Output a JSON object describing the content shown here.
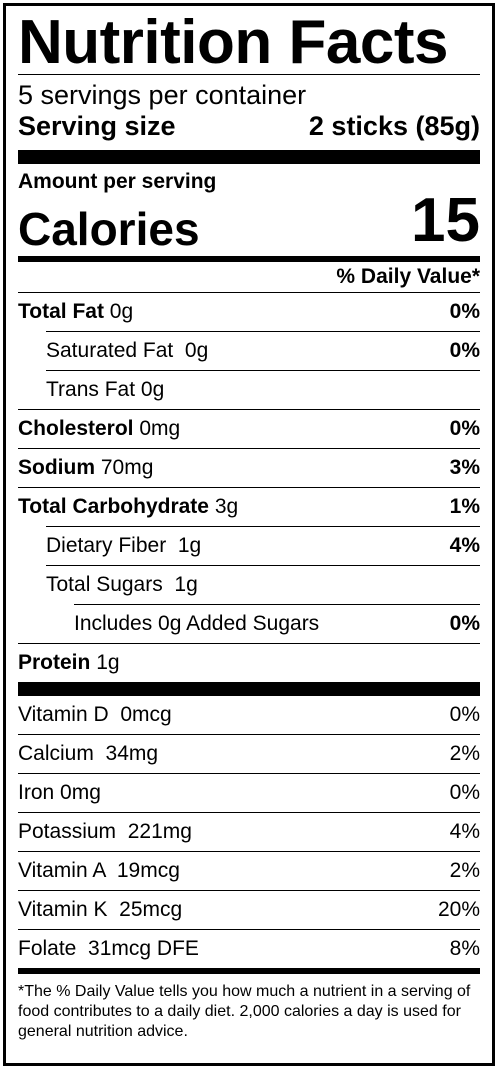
{
  "title": "Nutrition Facts",
  "servings_per_container": "5 servings per container",
  "serving_size": {
    "label": "Serving size",
    "value": "2 sticks (85g)"
  },
  "amount_per_serving": "Amount per serving",
  "calories": {
    "label": "Calories",
    "value": "15"
  },
  "daily_value_header": "% Daily Value*",
  "nutrients": [
    {
      "name": "Total Fat",
      "amount": "0g",
      "dv": "0%"
    },
    {
      "name": "Saturated Fat",
      "amount": "0g",
      "dv": "0%"
    },
    {
      "name": "Trans Fat",
      "amount": "0g",
      "dv": ""
    },
    {
      "name": "Cholesterol",
      "amount": "0mg",
      "dv": "0%"
    },
    {
      "name": "Sodium",
      "amount": "70mg",
      "dv": "3%"
    },
    {
      "name": "Total Carbohydrate",
      "amount": "3g",
      "dv": "1%"
    },
    {
      "name": "Dietary Fiber",
      "amount": "1g",
      "dv": "4%"
    },
    {
      "name": "Total Sugars",
      "amount": "1g",
      "dv": ""
    },
    {
      "name": "Includes 0g Added Sugars",
      "amount": "",
      "dv": "0%"
    },
    {
      "name": "Protein",
      "amount": "1g",
      "dv": ""
    }
  ],
  "vitamins": [
    {
      "text": "Vitamin D  0mcg",
      "dv": "0%"
    },
    {
      "text": "Calcium  34mg",
      "dv": "2%"
    },
    {
      "text": "Iron 0mg",
      "dv": "0%"
    },
    {
      "text": "Potassium  221mg",
      "dv": "4%"
    },
    {
      "text": "Vitamin A  19mcg",
      "dv": "2%"
    },
    {
      "text": "Vitamin K  25mcg",
      "dv": "20%"
    },
    {
      "text": "Folate  31mcg DFE",
      "dv": "8%"
    }
  ],
  "footnote": "*The % Daily Value tells you how much a nutrient in a serving of food contributes to a daily diet. 2,000 calories a day is used for general nutrition advice."
}
